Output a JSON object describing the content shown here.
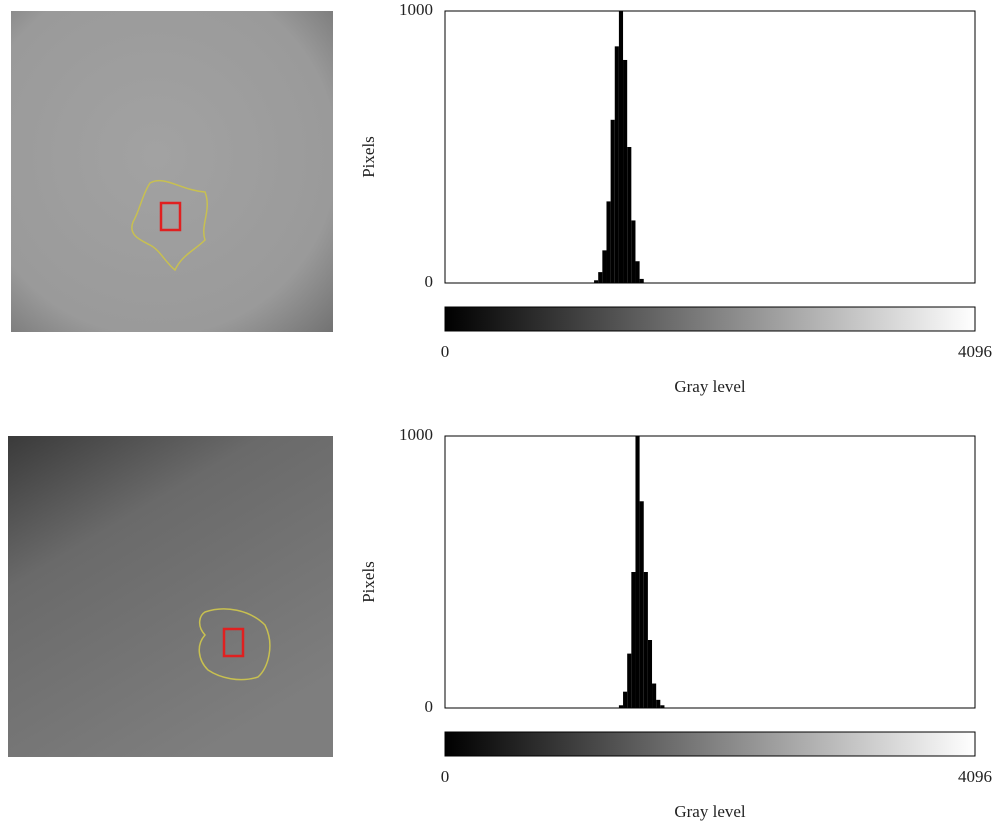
{
  "chart_data": [
    {
      "type": "histogram",
      "xlabel": "Gray level",
      "ylabel": "Pixels",
      "bins": [
        1152,
        1184,
        1216,
        1248,
        1280,
        1312,
        1344,
        1376,
        1408,
        1440,
        1472,
        1504,
        1536
      ],
      "values": [
        10,
        40,
        120,
        300,
        600,
        870,
        1000,
        820,
        500,
        230,
        80,
        15
      ],
      "color": "#000000",
      "xlim": [
        0,
        4096
      ],
      "xticks": [
        0,
        4096
      ],
      "ylim": [
        0,
        1000
      ],
      "yticks": [
        0,
        1000
      ]
    },
    {
      "type": "histogram",
      "xlabel": "Gray level",
      "ylabel": "Pixels",
      "bins": [
        1344,
        1376,
        1408,
        1440,
        1472,
        1504,
        1536,
        1568,
        1600,
        1632,
        1664,
        1696
      ],
      "values": [
        10,
        60,
        200,
        500,
        1000,
        760,
        500,
        250,
        90,
        30,
        10
      ],
      "color": "#000000",
      "xlim": [
        0,
        4096
      ],
      "xticks": [
        0,
        4096
      ],
      "ylim": [
        0,
        1000
      ],
      "yticks": [
        0,
        1000
      ]
    }
  ]
}
